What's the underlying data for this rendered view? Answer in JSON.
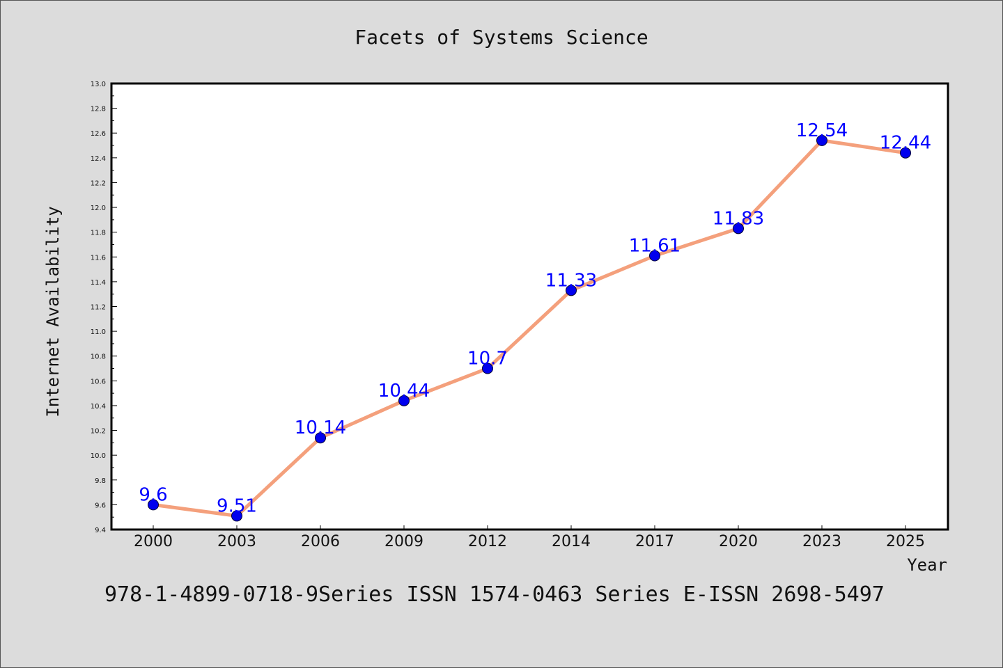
{
  "chart_data": {
    "type": "line",
    "title": "Facets of Systems Science",
    "xlabel": "Year",
    "ylabel": "Internet Availability",
    "categories": [
      "2000",
      "2003",
      "2006",
      "2009",
      "2012",
      "2014",
      "2017",
      "2020",
      "2023",
      "2025"
    ],
    "series": [
      {
        "values": [
          9.6,
          9.51,
          10.14,
          10.44,
          10.7,
          11.33,
          11.61,
          11.83,
          12.54,
          12.44
        ]
      }
    ],
    "data_labels": [
      "9.6",
      "9.51",
      "10.14",
      "10.44",
      "10.7",
      "11.33",
      "11.61",
      "11.83",
      "12.54",
      "12.44"
    ],
    "ylim": [
      9.4,
      13.0
    ],
    "yticks": [
      "9.4",
      "9.6",
      "9.8",
      "10.0",
      "10.2",
      "10.4",
      "10.6",
      "10.8",
      "11.0",
      "11.2",
      "11.4",
      "11.6",
      "11.8",
      "12.0",
      "12.2",
      "12.4",
      "12.6",
      "12.8",
      "13.0"
    ],
    "grid": false,
    "line_color": "#f4a07c",
    "marker_color": "#0000ee",
    "label_color": "#0000ff",
    "plot_background": "#ffffff",
    "page_background": "#dcdcdc"
  },
  "footer": "978-1-4899-0718-9Series ISSN 1574-0463 Series E-ISSN 2698-5497"
}
